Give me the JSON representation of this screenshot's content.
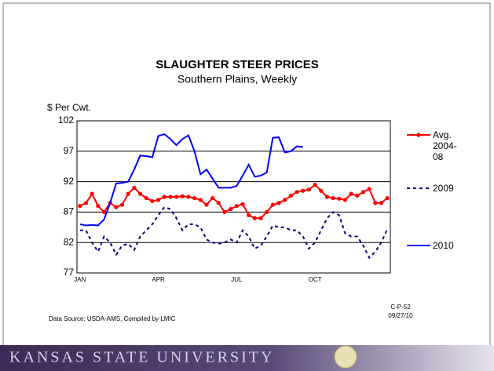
{
  "chart_data": {
    "type": "line",
    "title": "SLAUGHTER  STEER PRICES",
    "subtitle": "Southern Plains, Weekly",
    "y_label": "$ Per Cwt.",
    "source": "Data Source:  USDA-AMS, Compiled by LMIC",
    "code": "C-P-52",
    "date": "09/27/10",
    "footer": "KANSAS STATE UNIVERSITY",
    "categories": [
      "JAN",
      null,
      null,
      null,
      null,
      null,
      null,
      null,
      null,
      null,
      null,
      null,
      null,
      "APR",
      null,
      null,
      null,
      null,
      null,
      null,
      null,
      null,
      null,
      null,
      null,
      null,
      "JUL",
      null,
      null,
      null,
      null,
      null,
      null,
      null,
      null,
      null,
      null,
      null,
      null,
      "OCT",
      null,
      null,
      null,
      null,
      null,
      null,
      null,
      null,
      null,
      null,
      null,
      null
    ],
    "ylim": [
      77,
      102
    ],
    "yticks": [
      77,
      82,
      87,
      92,
      97,
      102
    ],
    "grid": true,
    "series": [
      {
        "name": "Avg. 2004-08",
        "color": "#ff0000",
        "style": "solid",
        "markers": true,
        "values": [
          88,
          88.5,
          90,
          88,
          87,
          88.5,
          87.8,
          88.2,
          90,
          91,
          90,
          89.3,
          88.8,
          89,
          89.5,
          89.5,
          89.5,
          89.6,
          89.5,
          89.3,
          89,
          88.2,
          89.3,
          88.5,
          87,
          87.5,
          88,
          88.3,
          86.5,
          86,
          86,
          87,
          88.2,
          88.5,
          89,
          89.7,
          90.3,
          90.5,
          90.7,
          91.5,
          90.5,
          89.5,
          89.3,
          89.2,
          89,
          90,
          89.7,
          90.3,
          90.8,
          88.5,
          88.5,
          89.3
        ]
      },
      {
        "name": "2009",
        "color": "#000080",
        "style": "dashed",
        "markers": false,
        "values": [
          84,
          84,
          82,
          80.5,
          83,
          82,
          80,
          81.5,
          81.8,
          80.8,
          83,
          84,
          85,
          86.5,
          87.8,
          87.5,
          86,
          84,
          85,
          85,
          84.5,
          82.5,
          82,
          81.8,
          82,
          82.5,
          82,
          84,
          83,
          81,
          81.5,
          83,
          84.8,
          84.5,
          84.5,
          84,
          84,
          83,
          81,
          82,
          84,
          86,
          87,
          86.5,
          83.5,
          83,
          83,
          81.5,
          79.5,
          80.5,
          82,
          84.2
        ]
      },
      {
        "name": "2010",
        "color": "#0000ff",
        "style": "solid",
        "markers": false,
        "values": [
          85,
          84.8,
          84.9,
          84.8,
          85.8,
          88.5,
          91.7,
          91.8,
          92,
          94,
          96.3,
          96.2,
          96,
          99.5,
          99.8,
          99,
          98,
          99,
          99.6,
          97,
          93.2,
          94,
          92.5,
          91,
          91,
          91,
          91.3,
          93,
          94.8,
          92.8,
          93,
          93.5,
          99.2,
          99.3,
          96.8,
          97,
          97.8,
          97.7,
          null,
          null,
          null,
          null,
          null,
          null,
          null,
          null,
          null,
          null,
          null,
          null,
          null,
          null
        ]
      }
    ]
  }
}
